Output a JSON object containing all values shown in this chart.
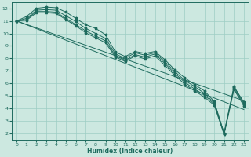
{
  "title": "",
  "xlabel": "Humidex (Indice chaleur)",
  "background_color": "#cce8e0",
  "grid_color": "#9ecec4",
  "line_color": "#1e6b5e",
  "xlim": [
    -0.5,
    23.5
  ],
  "ylim": [
    1.5,
    12.5
  ],
  "xticks": [
    0,
    1,
    2,
    3,
    4,
    5,
    6,
    7,
    8,
    9,
    10,
    11,
    12,
    13,
    14,
    15,
    16,
    17,
    18,
    19,
    20,
    21,
    22,
    23
  ],
  "yticks": [
    2,
    3,
    4,
    5,
    6,
    7,
    8,
    9,
    10,
    11,
    12
  ],
  "series": [
    [
      11.0,
      11.35,
      12.0,
      12.1,
      12.05,
      11.7,
      11.2,
      10.7,
      10.4,
      9.9,
      8.5,
      8.15,
      8.55,
      8.4,
      8.55,
      7.9,
      7.1,
      6.45,
      5.9,
      5.4,
      4.55,
      2.0,
      5.7,
      4.5
    ],
    [
      11.0,
      11.2,
      11.85,
      11.9,
      11.85,
      11.4,
      10.95,
      10.4,
      10.0,
      9.6,
      8.35,
      8.0,
      8.45,
      8.25,
      8.45,
      7.75,
      6.95,
      6.25,
      5.75,
      5.2,
      4.45,
      2.0,
      5.75,
      4.4
    ],
    [
      11.0,
      11.1,
      11.75,
      11.75,
      11.7,
      11.2,
      10.7,
      10.2,
      9.8,
      9.4,
      8.2,
      7.85,
      8.3,
      8.1,
      8.35,
      7.6,
      6.8,
      6.1,
      5.55,
      5.05,
      4.35,
      1.95,
      5.6,
      4.3
    ],
    [
      11.0,
      11.05,
      11.65,
      11.65,
      11.6,
      11.1,
      10.6,
      10.05,
      9.65,
      9.25,
      8.1,
      7.75,
      8.2,
      7.95,
      8.2,
      7.45,
      6.65,
      5.95,
      5.4,
      4.9,
      4.25,
      1.9,
      5.5,
      4.2
    ]
  ],
  "linear_lines": [
    {
      "x": [
        0,
        23
      ],
      "y": [
        11.0,
        4.6
      ]
    },
    {
      "x": [
        0,
        23
      ],
      "y": [
        11.0,
        3.9
      ]
    }
  ]
}
